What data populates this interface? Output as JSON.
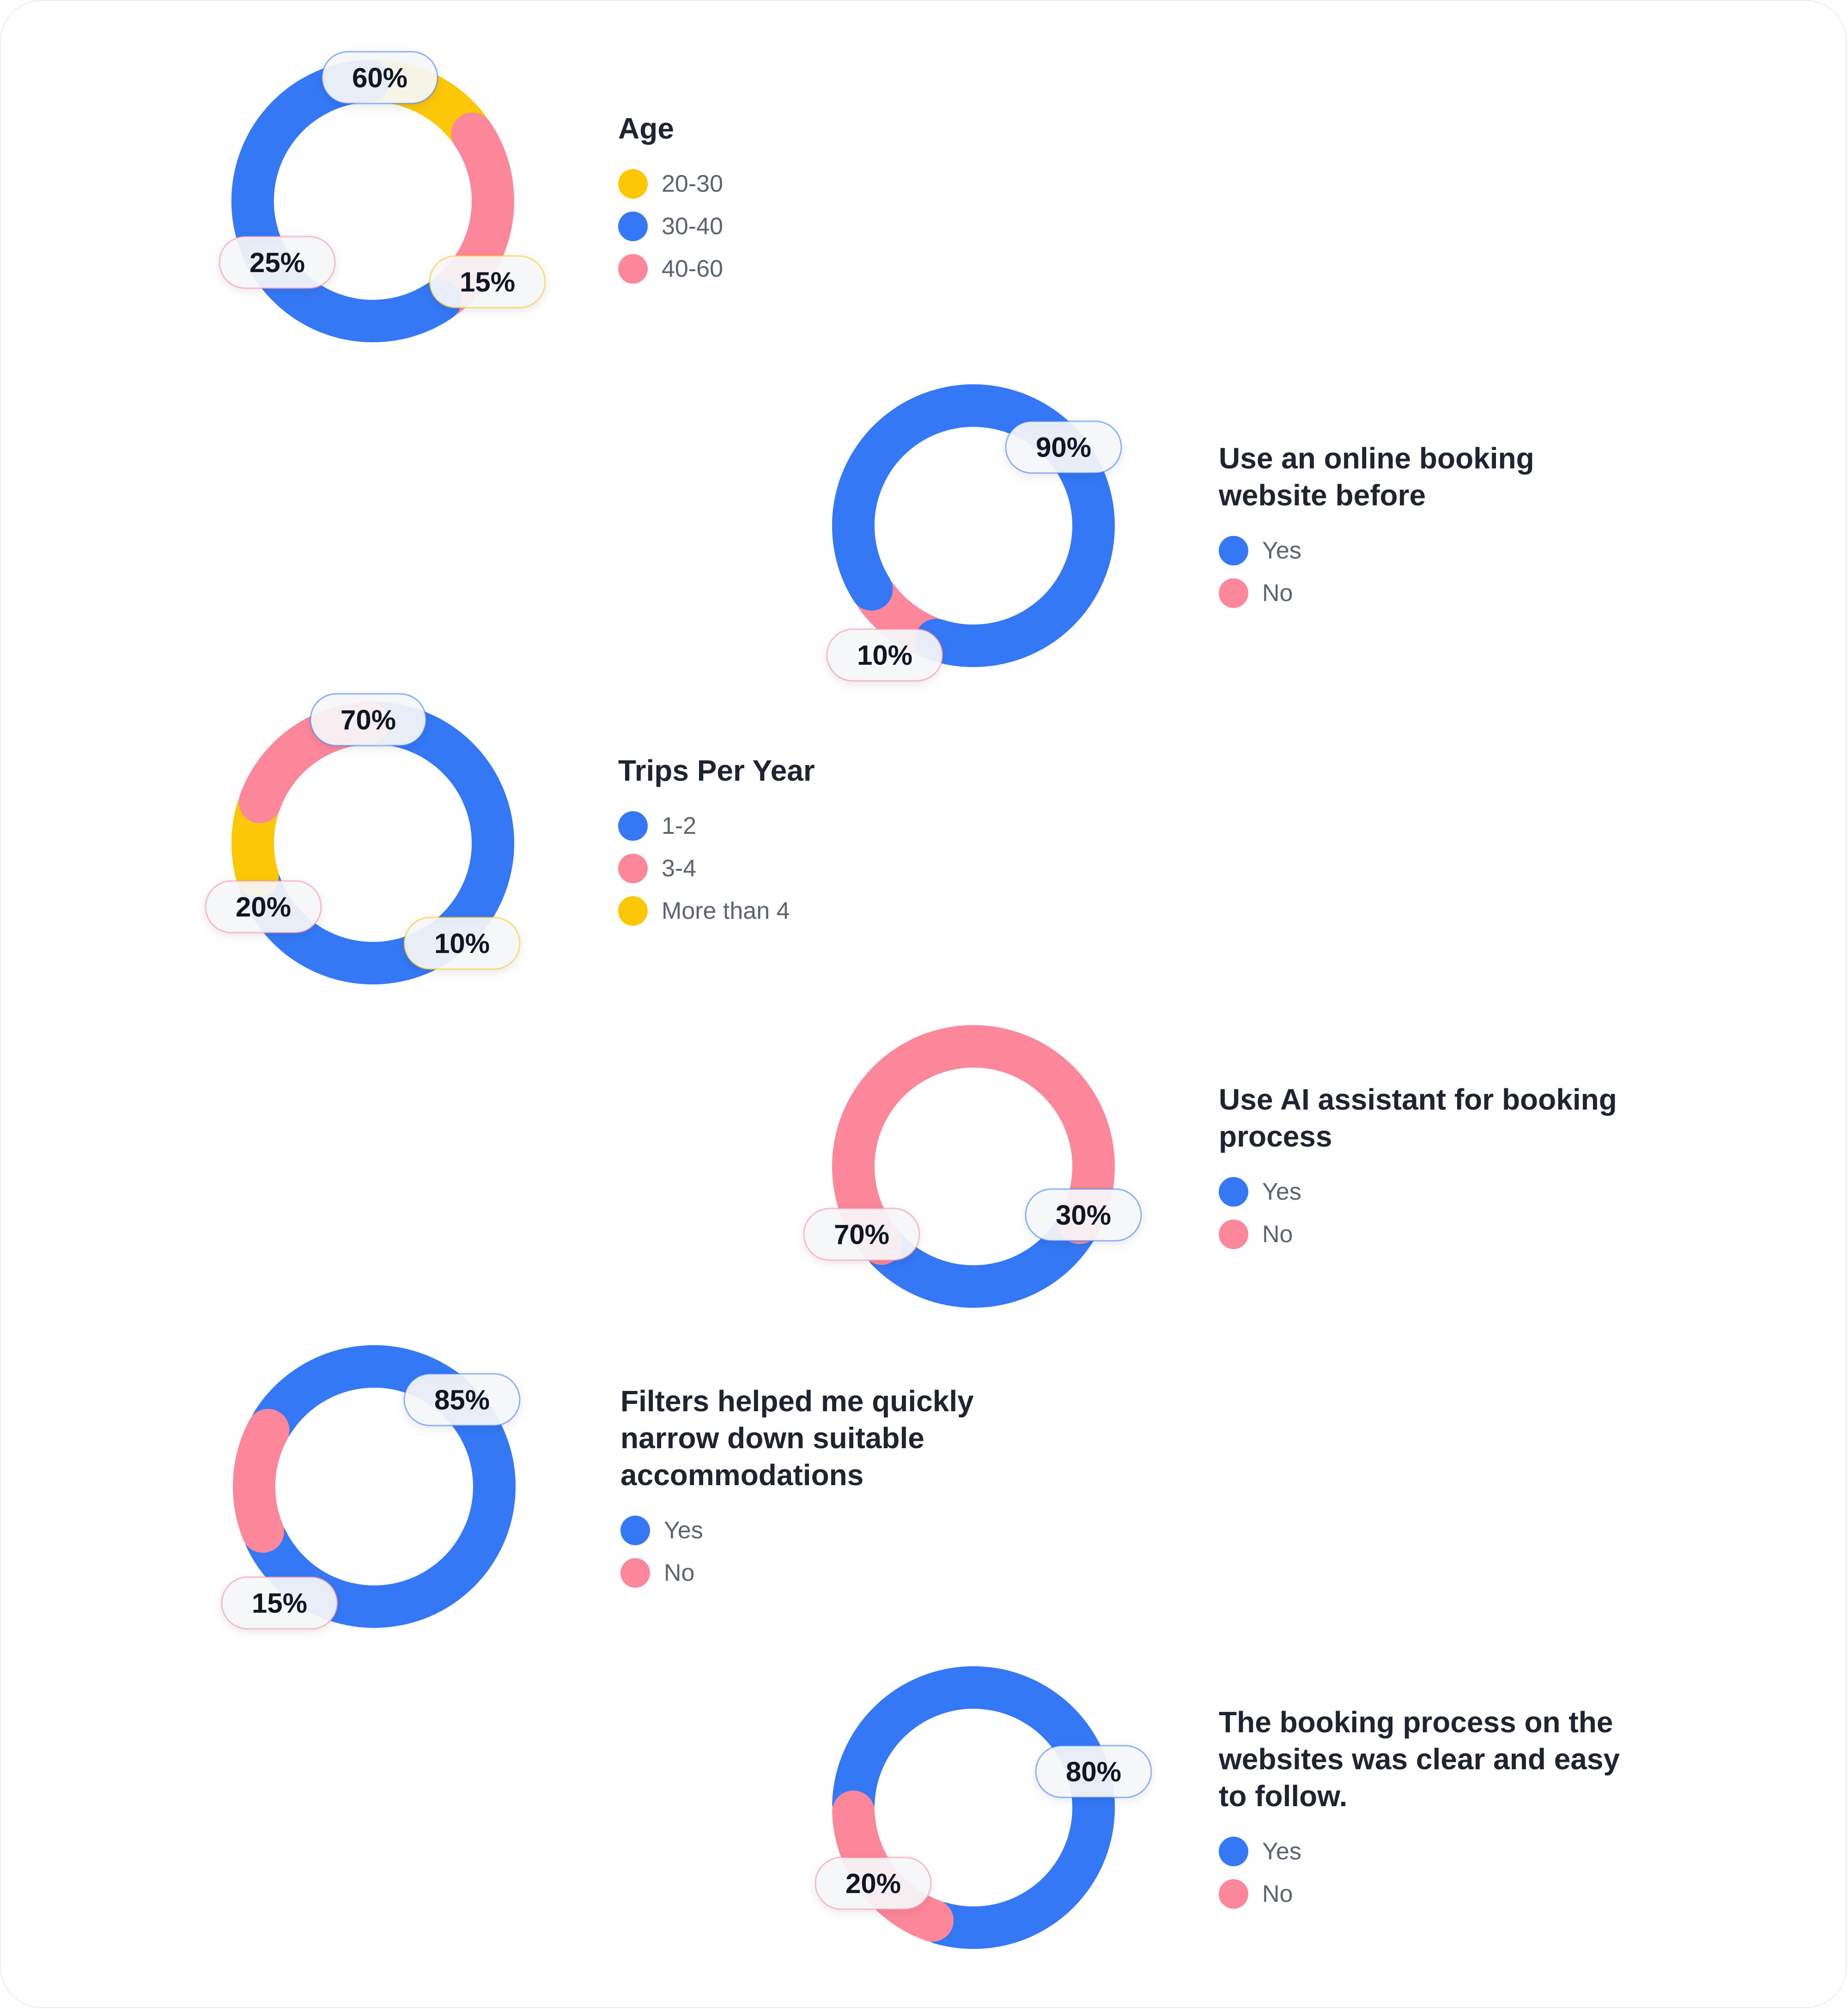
{
  "colors": {
    "blue": "#3478f6",
    "pink": "#fd879a",
    "yellow": "#fcc707"
  },
  "chart_data": [
    {
      "type": "pie",
      "title": "Age",
      "series": [
        {
          "name": "20-30",
          "value": 15,
          "label": "15%",
          "color": "#fcc707"
        },
        {
          "name": "30-40",
          "value": 60,
          "label": "60%",
          "color": "#3478f6"
        },
        {
          "name": "40-60",
          "value": 25,
          "label": "25%",
          "color": "#fd879a"
        }
      ]
    },
    {
      "type": "pie",
      "title": "Use an online booking website before",
      "series": [
        {
          "name": "Yes",
          "value": 90,
          "label": "90%",
          "color": "#3478f6"
        },
        {
          "name": "No",
          "value": 10,
          "label": "10%",
          "color": "#fd879a"
        }
      ]
    },
    {
      "type": "pie",
      "title": "Trips Per Year",
      "series": [
        {
          "name": "1-2",
          "value": 70,
          "label": "70%",
          "color": "#3478f6"
        },
        {
          "name": "3-4",
          "value": 20,
          "label": "20%",
          "color": "#fd879a"
        },
        {
          "name": "More than 4",
          "value": 10,
          "label": "10%",
          "color": "#fcc707"
        }
      ]
    },
    {
      "type": "pie",
      "title": "Use AI assistant for booking process",
      "series": [
        {
          "name": "Yes",
          "value": 30,
          "label": "30%",
          "color": "#3478f6"
        },
        {
          "name": "No",
          "value": 70,
          "label": "70%",
          "color": "#fd879a"
        }
      ]
    },
    {
      "type": "pie",
      "title": "Filters helped me quickly narrow down suitable accommodations",
      "series": [
        {
          "name": "Yes",
          "value": 85,
          "label": "85%",
          "color": "#3478f6"
        },
        {
          "name": "No",
          "value": 15,
          "label": "15%",
          "color": "#fd879a"
        }
      ]
    },
    {
      "type": "pie",
      "title": "The booking process on the websites was clear and easy to follow.",
      "series": [
        {
          "name": "Yes",
          "value": 80,
          "label": "80%",
          "color": "#3478f6"
        },
        {
          "name": "No",
          "value": 20,
          "label": "20%",
          "color": "#fd879a"
        }
      ]
    }
  ]
}
